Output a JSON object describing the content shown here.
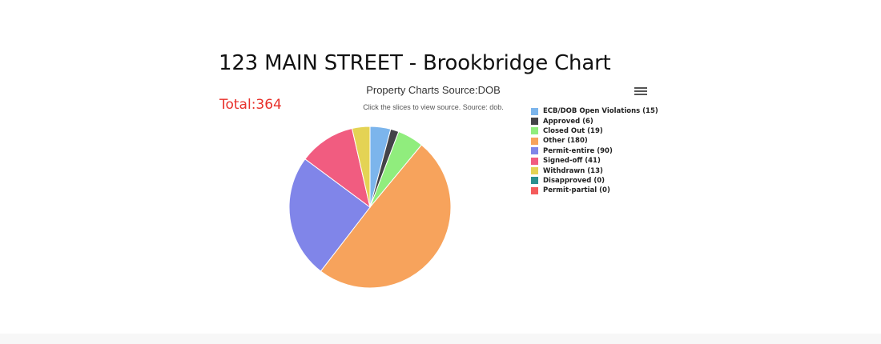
{
  "page": {
    "title": "123 MAIN STREET - Brookbridge Chart",
    "total": "Total:364"
  },
  "chart_data": {
    "type": "pie",
    "title": "Property Charts Source:DOB",
    "subtitle": "Click the slices to view source. Source: dob.",
    "legend_position": "right",
    "slices": [
      {
        "name": "ECB/DOB Open Violations",
        "value": 15,
        "color": "#7cb5ec",
        "label": "ECB/DOB Open Violations (15)"
      },
      {
        "name": "Approved",
        "value": 6,
        "color": "#434348",
        "label": "Approved (6)"
      },
      {
        "name": "Closed Out",
        "value": 19,
        "color": "#90ed7d",
        "label": "Closed Out (19)"
      },
      {
        "name": "Other",
        "value": 180,
        "color": "#f7a35c",
        "label": "Other (180)"
      },
      {
        "name": "Permit-entire",
        "value": 90,
        "color": "#8085e9",
        "label": "Permit-entire (90)"
      },
      {
        "name": "Signed-off",
        "value": 41,
        "color": "#f15c80",
        "label": "Signed-off (41)"
      },
      {
        "name": "Withdrawn",
        "value": 13,
        "color": "#e4d354",
        "label": "Withdrawn (13)"
      },
      {
        "name": "Disapproved",
        "value": 0,
        "color": "#2b908f",
        "label": "Disapproved (0)"
      },
      {
        "name": "Permit-partial",
        "value": 0,
        "color": "#f45b5b",
        "label": "Permit-partial (0)"
      }
    ]
  },
  "icons": {
    "menu": "hamburger-menu-icon"
  }
}
